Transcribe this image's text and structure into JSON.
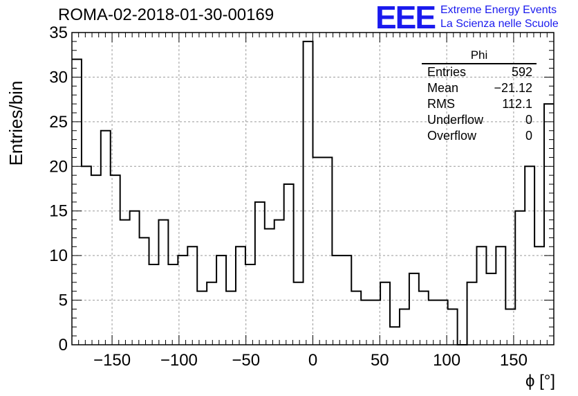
{
  "header": {
    "run_title": "ROMA-02-2018-01-30-00169",
    "logo_text": "EEE",
    "logo_line1": "Extreme Energy Events",
    "logo_line2": "La Scienza nelle Scuole",
    "logo_color": "#1a1aee"
  },
  "stats": {
    "title": "Phi",
    "rows": [
      {
        "label": "Entries",
        "value": "592"
      },
      {
        "label": "Mean",
        "value": "−21.12"
      },
      {
        "label": "RMS",
        "value": "112.1"
      },
      {
        "label": "Underflow",
        "value": "0"
      },
      {
        "label": "Overflow",
        "value": "0"
      }
    ]
  },
  "chart_data": {
    "type": "histogram",
    "xlabel": "ϕ [°]",
    "ylabel": "Entries/bin",
    "xlim": [
      -180,
      180
    ],
    "ylim": [
      0,
      35
    ],
    "grid": true,
    "bin_width": 7.2,
    "bin_edges_start": -180,
    "values": [
      32,
      20,
      19,
      24,
      19,
      14,
      15,
      12,
      9,
      14,
      9,
      10,
      11,
      6,
      7,
      10,
      6,
      11,
      9,
      16,
      13,
      14,
      18,
      7,
      34,
      21,
      21,
      10,
      10,
      6,
      5,
      5,
      7,
      2,
      4,
      8,
      6,
      5,
      5,
      4,
      0,
      7,
      11,
      8,
      11,
      4,
      15,
      20,
      11,
      27
    ],
    "xticks": [
      "−150",
      "−100",
      "−50",
      "0",
      "50",
      "100",
      "150"
    ],
    "xtick_values": [
      -150,
      -100,
      -50,
      0,
      50,
      100,
      150
    ],
    "yticks": [
      "0",
      "5",
      "10",
      "15",
      "20",
      "25",
      "30",
      "35"
    ],
    "ytick_values": [
      0,
      5,
      10,
      15,
      20,
      25,
      30,
      35
    ]
  }
}
